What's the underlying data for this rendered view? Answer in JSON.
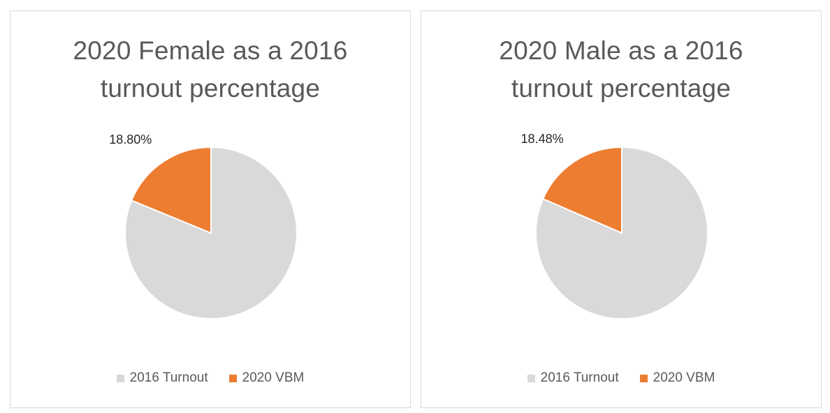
{
  "chart_data": [
    {
      "type": "pie",
      "title": [
        "2020 Female as a 2016",
        "turnout percentage"
      ],
      "categories": [
        "2016 Turnout",
        "2020 VBM"
      ],
      "values": [
        81.2,
        18.8
      ],
      "data_labels": [
        "",
        "18.80%"
      ],
      "colors": [
        "#d9d9d9",
        "#ed7d31"
      ],
      "legend": "bottom"
    },
    {
      "type": "pie",
      "title": [
        "2020 Male as a 2016",
        "turnout percentage"
      ],
      "categories": [
        "2016 Turnout",
        "2020 VBM"
      ],
      "values": [
        81.52,
        18.48
      ],
      "data_labels": [
        "",
        "18.48%"
      ],
      "colors": [
        "#d9d9d9",
        "#ed7d31"
      ],
      "legend": "bottom"
    }
  ]
}
